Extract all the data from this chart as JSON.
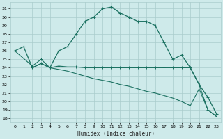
{
  "xlabel": "Humidex (Indice chaleur)",
  "bg_color": "#ceeaea",
  "grid_color": "#aacccc",
  "line_color": "#1a7060",
  "xlim": [
    -0.5,
    23.5
  ],
  "ylim": [
    17.5,
    31.8
  ],
  "xticks": [
    0,
    1,
    2,
    3,
    4,
    5,
    6,
    7,
    8,
    9,
    10,
    11,
    12,
    13,
    14,
    15,
    16,
    17,
    18,
    19,
    20,
    21,
    22,
    23
  ],
  "yticks": [
    18,
    19,
    20,
    21,
    22,
    23,
    24,
    25,
    26,
    27,
    28,
    29,
    30,
    31
  ],
  "line1_x": [
    0,
    1,
    2,
    3,
    4,
    5,
    6,
    7,
    8,
    9,
    10,
    11,
    12,
    13,
    14,
    15,
    16,
    17,
    18,
    19,
    20,
    21,
    22,
    23
  ],
  "line1_y": [
    26.0,
    26.5,
    24.0,
    24.5,
    24.0,
    26.0,
    26.5,
    28.0,
    29.5,
    30.0,
    31.0,
    31.2,
    30.5,
    30.0,
    29.5,
    29.5,
    29.0,
    27.0,
    25.0,
    25.5,
    24.0,
    22.0,
    20.5,
    18.5
  ],
  "line2_x": [
    0,
    2,
    3,
    4,
    5,
    6,
    7,
    8,
    9,
    10,
    11,
    12,
    13,
    14,
    15,
    16,
    17,
    18,
    19,
    20,
    21,
    22,
    23
  ],
  "line2_y": [
    26.0,
    24.2,
    25.0,
    24.0,
    24.2,
    24.1,
    24.1,
    24.0,
    24.0,
    24.0,
    24.0,
    24.0,
    24.0,
    24.0,
    24.0,
    24.0,
    24.0,
    24.0,
    24.0,
    24.0,
    22.0,
    19.0,
    18.2
  ],
  "line3_x": [
    2,
    3,
    4,
    5,
    6,
    7,
    8,
    9,
    10,
    11,
    12,
    13,
    14,
    15,
    16,
    17,
    18,
    19,
    20,
    21,
    22,
    23
  ],
  "line3_y": [
    24.0,
    24.5,
    24.0,
    23.8,
    23.6,
    23.3,
    23.0,
    22.7,
    22.5,
    22.3,
    22.0,
    21.8,
    21.5,
    21.2,
    21.0,
    20.7,
    20.4,
    20.0,
    19.5,
    21.5,
    19.0,
    18.2
  ]
}
